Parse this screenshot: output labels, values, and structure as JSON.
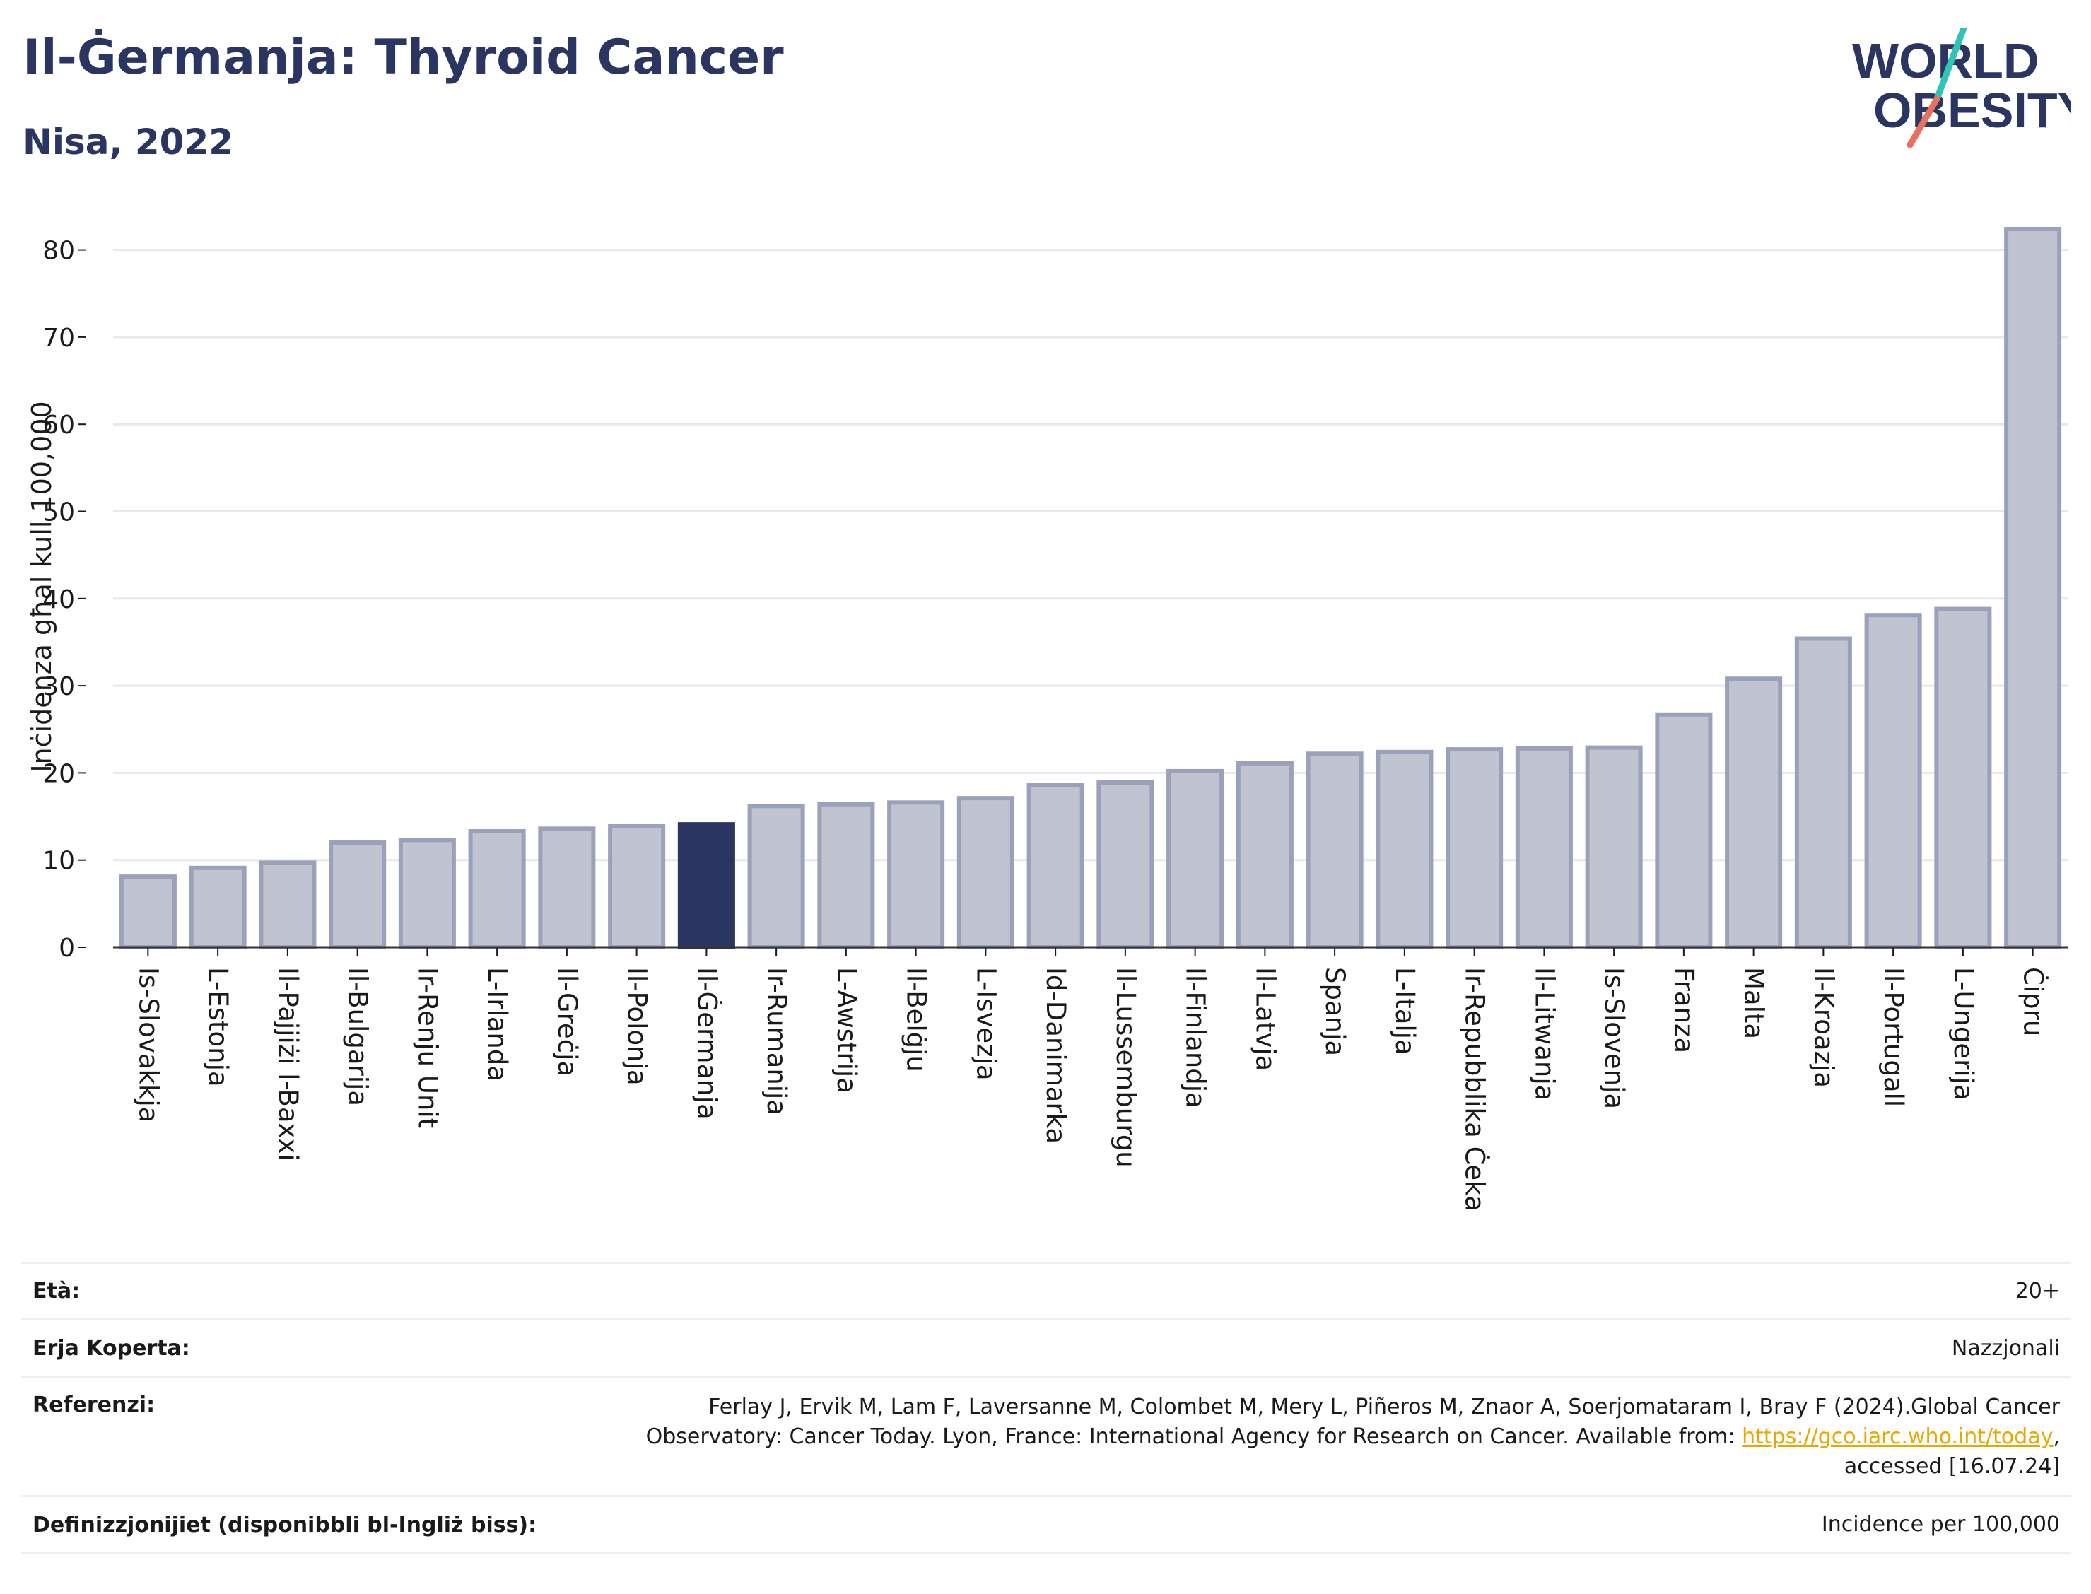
{
  "header": {
    "title": "Il-Ġermanja: Thyroid Cancer",
    "subtitle": "Nisa, 2022"
  },
  "logo": {
    "line1": "WORLD",
    "line2": "OBESITY",
    "colors": {
      "text": "#2a3561",
      "slash_teal": "#2ec4b6",
      "slash_coral": "#e8705f"
    }
  },
  "colors": {
    "bar": "#c0c3d0",
    "bar_border": "#9ba1ba",
    "highlight": "#2a3561",
    "grid": "#e6e8ee",
    "axis": "#333333"
  },
  "chart_data": {
    "type": "bar",
    "ylabel": "Inċidenza għal kull 100,000",
    "ylim": [
      0,
      85
    ],
    "yticks": [
      0,
      10,
      20,
      30,
      40,
      50,
      60,
      70,
      80
    ],
    "grid": true,
    "highlight": "Il-Ġermanja",
    "categories": [
      "Is-Slovakkja",
      "L-Estonja",
      "Il-Pajjiżi l-Baxxi",
      "Il-Bulgarija",
      "Ir-Renju Unit",
      "L-Irlanda",
      "Il-Greċja",
      "Il-Polonja",
      "Il-Ġermanja",
      "Ir-Rumanija",
      "L-Awstrija",
      "Il-Belġju",
      "L-Isvezja",
      "Id-Danimarka",
      "Il-Lussemburgu",
      "Il-Finlandja",
      "Il-Latvja",
      "Spanja",
      "L-Italja",
      "Ir-Repubblika Ċeka",
      "Il-Litwanja",
      "Is-Slovenja",
      "Franza",
      "Malta",
      "Il-Kroazja",
      "Il-Portugall",
      "L-Ungerija",
      "Ċipru"
    ],
    "values": [
      8.1,
      9.1,
      9.7,
      12.0,
      12.3,
      13.3,
      13.6,
      13.9,
      14.1,
      16.2,
      16.4,
      16.6,
      17.1,
      18.6,
      18.9,
      20.2,
      21.1,
      22.2,
      22.4,
      22.7,
      22.8,
      22.9,
      26.7,
      30.8,
      35.4,
      38.1,
      38.8,
      82.4
    ]
  },
  "info": [
    {
      "label": "Età:",
      "value": "20+"
    },
    {
      "label": "Erja Koperta:",
      "value": "Nazzjonali"
    },
    {
      "label": "Referenzi:",
      "value_line1": "Ferlay J, Ervik M, Lam F, Laversanne M, Colombet M, Mery L, Piñeros M, Znaor A, Soerjomataram I, Bray F (2024).Global Cancer",
      "value_line2_pre": "Observatory: Cancer Today. Lyon, France: International Agency for Research on Cancer. Available from: ",
      "link": "https://gco.iarc.who.int/today",
      "value_line2_post": ",",
      "value_line3": "accessed [16.07.24]"
    },
    {
      "label": "Definizzjonijiet (disponibbli bl-Ingliż biss):",
      "value": "Incidence per 100,000"
    }
  ]
}
